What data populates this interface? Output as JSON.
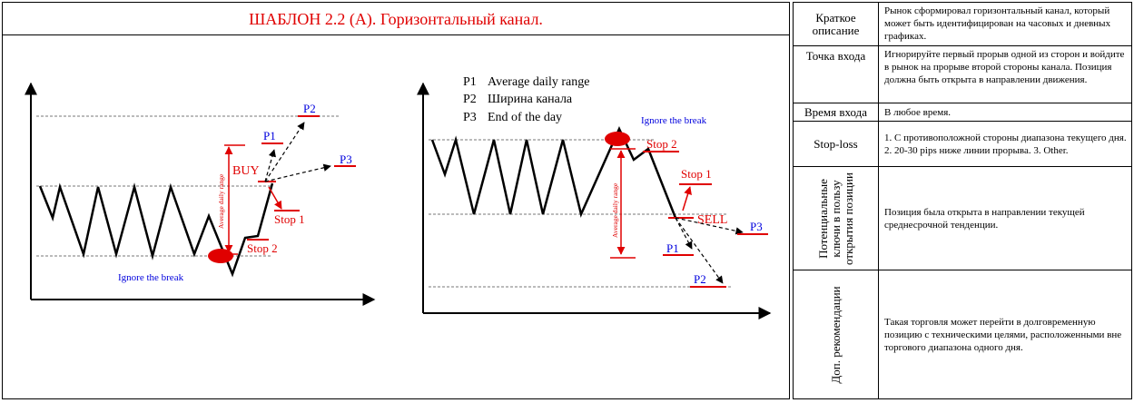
{
  "title": "ШАБЛОН 2.2 (А). Горизонтальный канал.",
  "colors": {
    "accent_red": "#e00000",
    "label_blue": "#0000dd",
    "line": "#000000",
    "guide": "#666666"
  },
  "left_chart": {
    "buy": "BUY",
    "stop1": "Stop 1",
    "stop2": "Stop 2",
    "p1": "P1",
    "p2": "P2",
    "p3": "P3",
    "range_label": "Average daily range",
    "ignore": "Ignore the break"
  },
  "right_chart": {
    "legend": [
      {
        "key": "P1",
        "text": "Average daily range"
      },
      {
        "key": "P2",
        "text": "Ширина канала"
      },
      {
        "key": "P3",
        "text": "End of the day"
      }
    ],
    "sell": "SELL",
    "stop1": "Stop 1",
    "stop2": "Stop 2",
    "p1": "P1",
    "p2": "P2",
    "p3": "P3",
    "range_label": "Average daily range",
    "ignore": "Ignore the break"
  },
  "table": {
    "rows": [
      {
        "label": "Краткое описание",
        "desc": "Рынок сформировал горизонтальный канал, который может быть идентифицирован на часовых и дневных графиках."
      },
      {
        "label": "Точка входа",
        "desc": "Игнорируйте первый прорыв одной из сторон и войдите в рынок на прорыве второй стороны канала. Позиция должна быть открыта в направлении движения."
      },
      {
        "label": "Время входа",
        "desc": "В любое время."
      },
      {
        "label": "Stop-loss",
        "desc": "1. С противоположной стороны диапазона текущего дня. 2. 20-30 pips ниже линии прорыва. 3. Other."
      },
      {
        "label": "Потенциальные ключи в пользу открытия позиции",
        "desc": "Позиция была открыта в направлении текущей среднесрочной тенденции."
      },
      {
        "label": "Доп. рекомендации",
        "desc": "Такая торговля может перейти в долговременную позицию с техническими целями, расположенными вне торгового диапазона одного дня."
      }
    ]
  }
}
